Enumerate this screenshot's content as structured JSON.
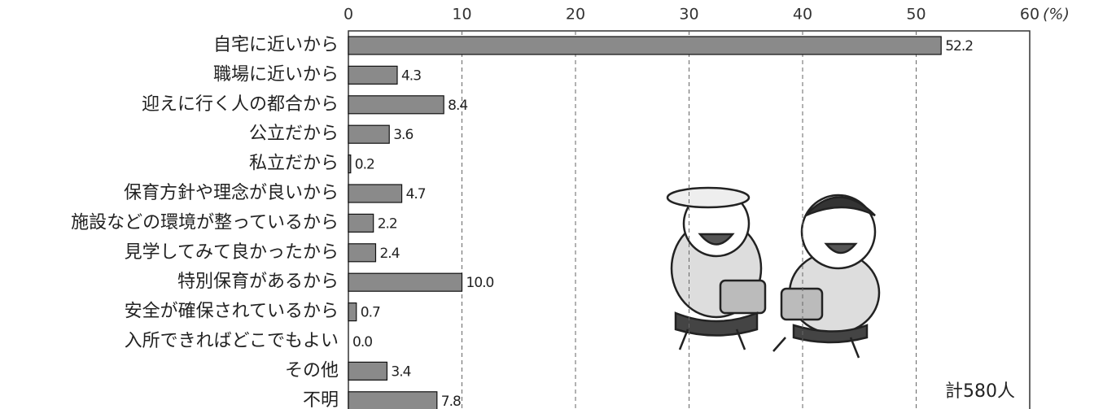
{
  "chart_data": {
    "type": "bar",
    "orientation": "horizontal",
    "categories": [
      "自宅に近いから",
      "職場に近いから",
      "迎えに行く人の都合から",
      "公立だから",
      "私立だから",
      "保育方針や理念が良いから",
      "施設などの環境が整っているから",
      "見学してみて良かったから",
      "特別保育があるから",
      "安全が確保されているから",
      "入所できればどこでもよい",
      "その他",
      "不明"
    ],
    "values": [
      52.2,
      4.3,
      8.4,
      3.6,
      0.2,
      4.7,
      2.2,
      2.4,
      10.0,
      0.7,
      0.0,
      3.4,
      7.8
    ],
    "value_labels": [
      "52.2",
      "4.3",
      "8.4",
      "3.6",
      "0.2",
      "4.7",
      "2.2",
      "2.4",
      "10.0",
      "0.7",
      "0.0",
      "3.4",
      "7.8"
    ],
    "color": "#8a8a8a",
    "xlim": [
      0,
      60
    ],
    "xticks": [
      0,
      10,
      20,
      30,
      40,
      50,
      60
    ],
    "x_unit": "(%)",
    "grid": true,
    "annotation": "計580人"
  }
}
